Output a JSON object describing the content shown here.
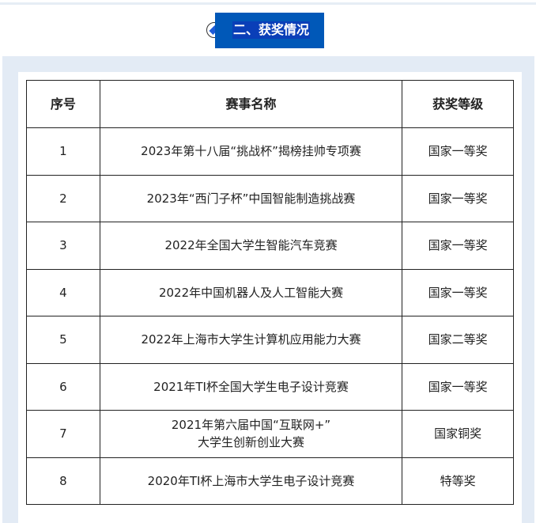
{
  "section_title": "二、获奖情况",
  "table": {
    "headers": [
      "序号",
      "赛事名称",
      "获奖等级"
    ],
    "rows": [
      [
        "1",
        "2023年第十八届“挑战杯”揭榜挂帅专项赛",
        "国家一等奖"
      ],
      [
        "2",
        "2023年“西门子杯”中国智能制造挑战赛",
        "国家一等奖"
      ],
      [
        "3",
        "2022年全国大学生智能汽车竞赛",
        "国家一等奖"
      ],
      [
        "4",
        "2022年中国机器人及人工智能大赛",
        "国家一等奖"
      ],
      [
        "5",
        "2022年上海市大学生计算机应用能力大赛",
        "国家二等奖"
      ],
      [
        "6",
        "2021年TI杯全国大学生电子设计竞赛",
        "国家一等奖"
      ],
      [
        "7",
        "2021年第六届中国“互联网+”\n大学生创新创业大赛",
        "国家铜奖"
      ],
      [
        "8",
        "2020年TI杯上海市大学生电子设计竞赛",
        "特等奖"
      ]
    ]
  }
}
